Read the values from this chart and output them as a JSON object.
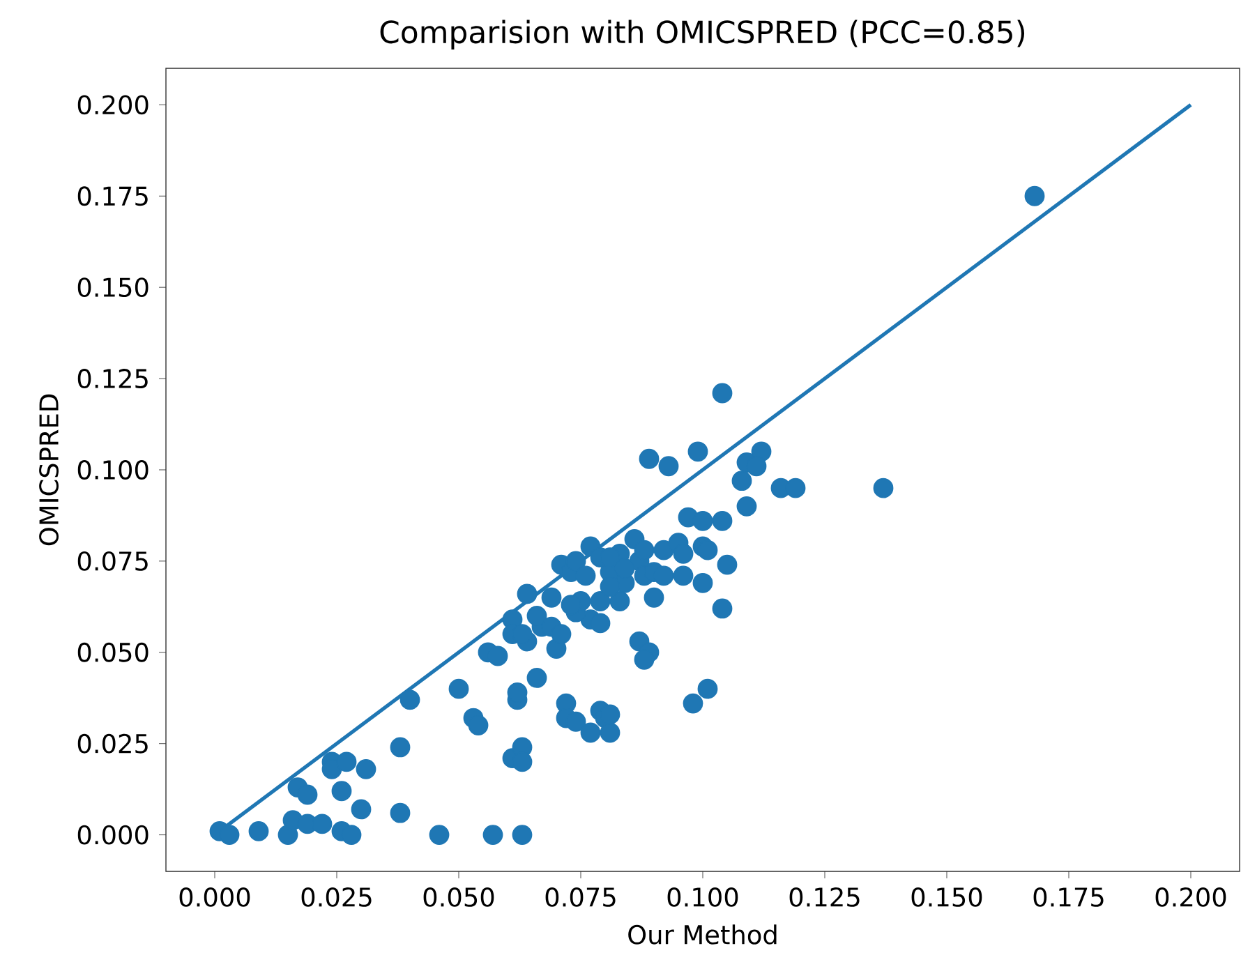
{
  "chart_data": {
    "type": "scatter",
    "title": "Comparision with OMICSPRED (PCC=0.85)",
    "xlabel": "Our Method",
    "ylabel": "OMICSPRED",
    "xlim": [
      -0.01,
      0.21
    ],
    "ylim": [
      -0.01,
      0.21
    ],
    "xticks": [
      {
        "value": 0,
        "label": "0.000"
      },
      {
        "value": 0.025,
        "label": "0.025"
      },
      {
        "value": 0.05,
        "label": "0.050"
      },
      {
        "value": 0.075,
        "label": "0.075"
      },
      {
        "value": 0.1,
        "label": "0.100"
      },
      {
        "value": 0.125,
        "label": "0.125"
      },
      {
        "value": 0.15,
        "label": "0.150"
      },
      {
        "value": 0.175,
        "label": "0.175"
      },
      {
        "value": 0.2,
        "label": "0.200"
      }
    ],
    "yticks": [
      {
        "value": 0,
        "label": "0.000"
      },
      {
        "value": 0.025,
        "label": "0.025"
      },
      {
        "value": 0.05,
        "label": "0.050"
      },
      {
        "value": 0.075,
        "label": "0.075"
      },
      {
        "value": 0.1,
        "label": "0.100"
      },
      {
        "value": 0.125,
        "label": "0.125"
      },
      {
        "value": 0.15,
        "label": "0.150"
      },
      {
        "value": 0.175,
        "label": "0.175"
      },
      {
        "value": 0.2,
        "label": "0.200"
      }
    ],
    "grid": false,
    "marker": "circle",
    "series": [
      {
        "color": "#1f77b4",
        "x": [
          0.001,
          0.003,
          0.009,
          0.015,
          0.016,
          0.019,
          0.022,
          0.026,
          0.028,
          0.046,
          0.057,
          0.063,
          0.017,
          0.019,
          0.024,
          0.024,
          0.027,
          0.031,
          0.026,
          0.03,
          0.038,
          0.038,
          0.04,
          0.05,
          0.053,
          0.054,
          0.056,
          0.058,
          0.061,
          0.063,
          0.062,
          0.062,
          0.063,
          0.066,
          0.064,
          0.064,
          0.061,
          0.061,
          0.063,
          0.067,
          0.066,
          0.069,
          0.07,
          0.071,
          0.072,
          0.072,
          0.074,
          0.077,
          0.079,
          0.08,
          0.081,
          0.081,
          0.071,
          0.073,
          0.074,
          0.076,
          0.077,
          0.079,
          0.081,
          0.083,
          0.084,
          0.083,
          0.079,
          0.077,
          0.079,
          0.074,
          0.075,
          0.069,
          0.073,
          0.081,
          0.081,
          0.087,
          0.084,
          0.088,
          0.087,
          0.089,
          0.088,
          0.089,
          0.093,
          0.097,
          0.1,
          0.104,
          0.099,
          0.104,
          0.112,
          0.109,
          0.111,
          0.108,
          0.109,
          0.116,
          0.119,
          0.086,
          0.088,
          0.092,
          0.095,
          0.096,
          0.1,
          0.101,
          0.105,
          0.096,
          0.1,
          0.104,
          0.09,
          0.092,
          0.09,
          0.137,
          0.168,
          0.101,
          0.098
        ],
        "values": [
          0.001,
          0.0,
          0.001,
          0.0,
          0.004,
          0.003,
          0.003,
          0.001,
          0.0,
          0.0,
          0.0,
          0.0,
          0.013,
          0.011,
          0.02,
          0.018,
          0.02,
          0.018,
          0.012,
          0.007,
          0.024,
          0.006,
          0.037,
          0.04,
          0.032,
          0.03,
          0.05,
          0.049,
          0.021,
          0.024,
          0.037,
          0.039,
          0.02,
          0.043,
          0.066,
          0.053,
          0.059,
          0.055,
          0.055,
          0.057,
          0.06,
          0.057,
          0.051,
          0.055,
          0.036,
          0.032,
          0.031,
          0.028,
          0.034,
          0.032,
          0.028,
          0.033,
          0.074,
          0.072,
          0.075,
          0.071,
          0.079,
          0.076,
          0.072,
          0.077,
          0.069,
          0.064,
          0.064,
          0.059,
          0.058,
          0.061,
          0.064,
          0.065,
          0.063,
          0.068,
          0.076,
          0.075,
          0.073,
          0.071,
          0.053,
          0.05,
          0.048,
          0.103,
          0.101,
          0.087,
          0.086,
          0.086,
          0.105,
          0.121,
          0.105,
          0.102,
          0.101,
          0.097,
          0.09,
          0.095,
          0.095,
          0.081,
          0.078,
          0.078,
          0.08,
          0.077,
          0.079,
          0.078,
          0.074,
          0.071,
          0.069,
          0.062,
          0.072,
          0.071,
          0.065,
          0.095,
          0.175,
          0.04,
          0.036
        ]
      },
      {
        "type": "line",
        "color": "#1f77b4",
        "marker": "none",
        "x": [
          0.002,
          0.2
        ],
        "values": [
          0.002,
          0.2
        ]
      }
    ]
  }
}
